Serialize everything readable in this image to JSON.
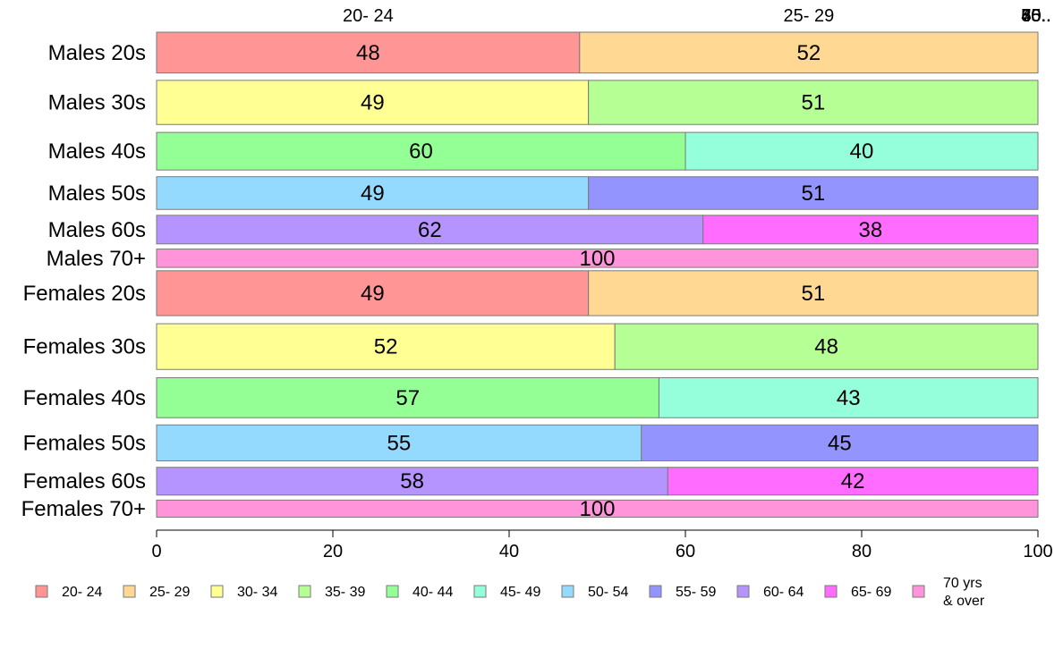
{
  "chart_data": {
    "type": "bar",
    "orientation": "horizontal",
    "stacked": true,
    "title": "",
    "xlabel": "",
    "ylabel": "",
    "xlim": [
      0,
      100
    ],
    "x_ticks": [
      0,
      20,
      40,
      60,
      80,
      100
    ],
    "grid": false,
    "legend_position": "bottom",
    "top_axis_labels": [
      "20- 24",
      "25- 29",
      "30..",
      "35..",
      "40..",
      "45..",
      "50..",
      "55..",
      "60..",
      "65..",
      "70.."
    ],
    "categories": [
      "Males 20s",
      "Males 30s",
      "Males 40s",
      "Males 50s",
      "Males 60s",
      "Males 70+",
      "Females 20s",
      "Females 30s",
      "Females 40s",
      "Females 50s",
      "Females 60s",
      "Females 70+"
    ],
    "row_weights": [
      1.0,
      1.08,
      0.92,
      0.8,
      0.7,
      0.45,
      1.1,
      1.12,
      0.98,
      0.88,
      0.68,
      0.42
    ],
    "series": [
      {
        "name": "20- 24",
        "color": "#FF9595",
        "values": [
          48,
          0,
          0,
          0,
          0,
          0,
          49,
          0,
          0,
          0,
          0,
          0
        ]
      },
      {
        "name": "25- 29",
        "color": "#FFD994",
        "values": [
          52,
          0,
          0,
          0,
          0,
          0,
          51,
          0,
          0,
          0,
          0,
          0
        ]
      },
      {
        "name": "30- 34",
        "color": "#FFFF94",
        "values": [
          0,
          49,
          0,
          0,
          0,
          0,
          0,
          52,
          0,
          0,
          0,
          0
        ]
      },
      {
        "name": "35- 39",
        "color": "#B5FF94",
        "values": [
          0,
          51,
          0,
          0,
          0,
          0,
          0,
          48,
          0,
          0,
          0,
          0
        ]
      },
      {
        "name": "40- 44",
        "color": "#94FF94",
        "values": [
          0,
          0,
          60,
          0,
          0,
          0,
          0,
          0,
          57,
          0,
          0,
          0
        ]
      },
      {
        "name": "45- 49",
        "color": "#94FFDA",
        "values": [
          0,
          0,
          40,
          0,
          0,
          0,
          0,
          0,
          43,
          0,
          0,
          0
        ]
      },
      {
        "name": "50- 54",
        "color": "#94DAFF",
        "values": [
          0,
          0,
          0,
          49,
          0,
          0,
          0,
          0,
          0,
          55,
          0,
          0
        ]
      },
      {
        "name": "55- 59",
        "color": "#9494FF",
        "values": [
          0,
          0,
          0,
          51,
          0,
          0,
          0,
          0,
          0,
          45,
          0,
          0
        ]
      },
      {
        "name": "60- 64",
        "color": "#B594FF",
        "values": [
          0,
          0,
          0,
          0,
          62,
          0,
          0,
          0,
          0,
          0,
          58,
          0
        ]
      },
      {
        "name": "65- 69",
        "color": "#FF6CFF",
        "values": [
          0,
          0,
          0,
          0,
          38,
          0,
          0,
          0,
          0,
          0,
          42,
          0
        ]
      },
      {
        "name": "70 yrs & over",
        "color": "#FF94DA",
        "values": [
          0,
          0,
          0,
          0,
          0,
          100,
          0,
          0,
          0,
          0,
          0,
          100
        ]
      }
    ],
    "legend": [
      "20- 24",
      "25- 29",
      "30- 34",
      "35- 39",
      "40- 44",
      "45- 49",
      "50- 54",
      "55- 59",
      "60- 64",
      "65- 69",
      "70 yrs\n& over"
    ]
  }
}
